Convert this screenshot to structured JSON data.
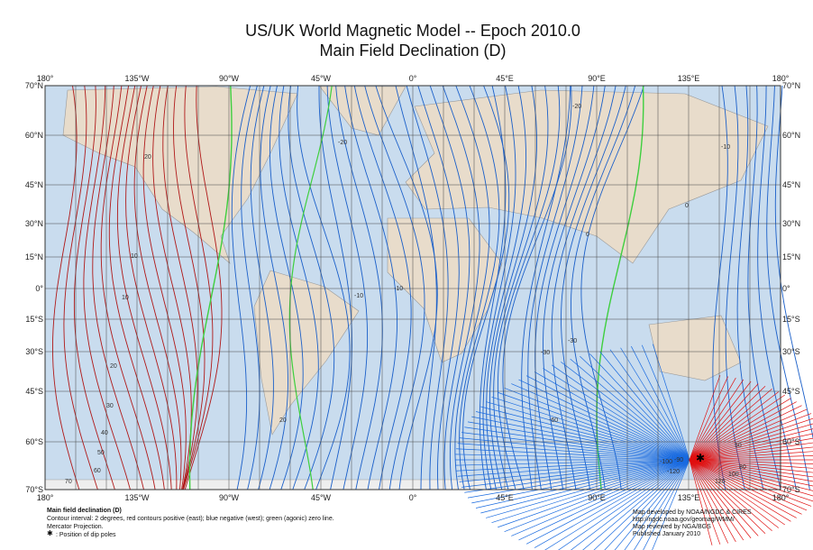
{
  "header": {
    "title": "US/UK World Magnetic Model -- Epoch 2010.0",
    "subtitle": "Main Field Declination (D)"
  },
  "map": {
    "lon_labels": [
      "180°",
      "135°W",
      "90°W",
      "45°W",
      "0°",
      "45°E",
      "90°E",
      "135°E",
      "180°"
    ],
    "lat_labels": [
      "70°N",
      "60°N",
      "45°N",
      "30°N",
      "15°N",
      "0°",
      "15°S",
      "30°S",
      "45°S",
      "60°S",
      "70°S"
    ],
    "contour_labels": [
      "20",
      "10",
      "10",
      "20",
      "30",
      "40",
      "50",
      "60",
      "70",
      "-20",
      "-10",
      "-10",
      "0",
      "-30",
      "-60",
      "-90",
      "-100",
      "-120",
      "120",
      "100",
      "80",
      "50",
      "-20",
      "0",
      "-10",
      "-30",
      "20"
    ]
  },
  "footer": {
    "left": [
      "Main field declination (D)",
      "Contour interval: 2 degrees, red contours positive (east); blue negative (west); green (agonic) zero line.",
      "Mercator Projection.",
      ": Position of dip poles"
    ],
    "right": [
      "Map developed by NOAA/NGDC & CIRES",
      "http://ngdc.noaa.gov/geomag/WMM/",
      "Map reviewed by NGA/BGS",
      "Published January 2010"
    ]
  }
}
